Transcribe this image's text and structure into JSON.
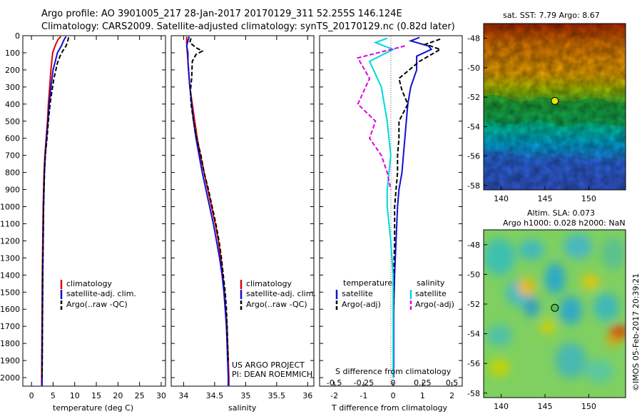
{
  "header": {
    "line1": "Argo profile: AO 3901005_217 28-Jan-2017 20170129_311 52.255S 146.124E",
    "line2": "Climatology: CARS2009. Satellite-adjusted climatology: synTS_20170129.nc (0.82d later)"
  },
  "colors": {
    "climatology": "#e00000",
    "satellite": "#1010d0",
    "argo": "#000000",
    "sat_salinity": "#00d8d8",
    "argo_salinity": "#e000e0"
  },
  "chart_data": [
    {
      "type": "line",
      "xlabel": "temperature (deg C)",
      "ylabel": "",
      "xlim": [
        -2,
        31
      ],
      "ylim": [
        2050,
        0
      ],
      "xticks": [
        "0",
        "5",
        "10",
        "15",
        "20",
        "25",
        "30"
      ],
      "yticks": [
        "0",
        "100",
        "200",
        "300",
        "400",
        "500",
        "600",
        "700",
        "800",
        "900",
        "1000",
        "1100",
        "1200",
        "1300",
        "1400",
        "1500",
        "1600",
        "1700",
        "1800",
        "1900",
        "2000"
      ],
      "legend": [
        "climatology",
        "satellite-adj. clim.",
        "Argo(..raw -QC)"
      ],
      "series": [
        {
          "name": "climatology",
          "x": [
            [
              6.8,
              5
            ],
            [
              6.2,
              20
            ],
            [
              5.6,
              50
            ],
            [
              4.9,
              100
            ],
            [
              4.5,
              200
            ],
            [
              4.2,
              300
            ],
            [
              3.9,
              400
            ],
            [
              3.7,
              500
            ],
            [
              3.4,
              600
            ],
            [
              3.1,
              700
            ],
            [
              2.9,
              800
            ],
            [
              2.8,
              900
            ],
            [
              2.7,
              1000
            ],
            [
              2.6,
              1200
            ],
            [
              2.5,
              1400
            ],
            [
              2.45,
              1600
            ],
            [
              2.4,
              1800
            ],
            [
              2.35,
              2000
            ],
            [
              2.35,
              2050
            ]
          ]
        },
        {
          "name": "satellite-adj. clim.",
          "x": [
            [
              8.0,
              5
            ],
            [
              7.6,
              20
            ],
            [
              6.9,
              60
            ],
            [
              6.0,
              100
            ],
            [
              5.0,
              200
            ],
            [
              4.5,
              300
            ],
            [
              4.1,
              400
            ],
            [
              3.8,
              500
            ],
            [
              3.5,
              600
            ],
            [
              3.2,
              700
            ],
            [
              3.0,
              800
            ],
            [
              2.9,
              900
            ],
            [
              2.8,
              1000
            ],
            [
              2.7,
              1200
            ],
            [
              2.6,
              1400
            ],
            [
              2.55,
              1600
            ],
            [
              2.5,
              1800
            ],
            [
              2.45,
              2000
            ],
            [
              2.45,
              2050
            ]
          ]
        },
        {
          "name": "Argo(..raw -QC)",
          "x": [
            [
              8.6,
              10
            ],
            [
              8.4,
              30
            ],
            [
              8.0,
              60
            ],
            [
              7.2,
              90
            ],
            [
              6.6,
              120
            ],
            [
              6.0,
              160
            ],
            [
              5.2,
              250
            ],
            [
              4.7,
              330
            ],
            [
              4.3,
              400
            ],
            [
              3.9,
              500
            ],
            [
              3.6,
              600
            ],
            [
              3.2,
              700
            ],
            [
              3.0,
              800
            ],
            [
              2.9,
              900
            ],
            [
              2.8,
              1000
            ],
            [
              2.7,
              1200
            ],
            [
              2.6,
              1400
            ],
            [
              2.55,
              1600
            ],
            [
              2.5,
              1800
            ],
            [
              2.45,
              2000
            ]
          ]
        }
      ]
    },
    {
      "type": "line",
      "xlabel": "salinity",
      "xlim": [
        33.8,
        36.1
      ],
      "ylim": [
        2050,
        0
      ],
      "xticks": [
        "34",
        "34.5",
        "35",
        "35.5",
        "36"
      ],
      "legend": [
        "climatology",
        "satellite-adj. clim.",
        "Argo(..raw -QC)"
      ],
      "annotations": [
        "US ARGO PROJECT",
        "PI: DEAN ROEMMICH"
      ],
      "series": [
        {
          "name": "climatology",
          "x": [
            [
              34.05,
              5
            ],
            [
              34.05,
              50
            ],
            [
              34.06,
              100
            ],
            [
              34.08,
              200
            ],
            [
              34.1,
              300
            ],
            [
              34.14,
              400
            ],
            [
              34.18,
              500
            ],
            [
              34.22,
              600
            ],
            [
              34.27,
              700
            ],
            [
              34.33,
              800
            ],
            [
              34.39,
              900
            ],
            [
              34.45,
              1000
            ],
            [
              34.51,
              1100
            ],
            [
              34.56,
              1200
            ],
            [
              34.6,
              1300
            ],
            [
              34.63,
              1400
            ],
            [
              34.66,
              1500
            ],
            [
              34.68,
              1600
            ],
            [
              34.7,
              1700
            ],
            [
              34.71,
              1800
            ],
            [
              34.72,
              1900
            ],
            [
              34.73,
              2000
            ],
            [
              34.73,
              2050
            ]
          ]
        },
        {
          "name": "satellite-adj. clim.",
          "x": [
            [
              34.09,
              5
            ],
            [
              34.07,
              30
            ],
            [
              34.05,
              60
            ],
            [
              34.07,
              100
            ],
            [
              34.07,
              150
            ],
            [
              34.08,
              200
            ],
            [
              34.1,
              300
            ],
            [
              34.13,
              400
            ],
            [
              34.16,
              500
            ],
            [
              34.2,
              600
            ],
            [
              34.25,
              700
            ],
            [
              34.3,
              800
            ],
            [
              34.36,
              900
            ],
            [
              34.42,
              1000
            ],
            [
              34.48,
              1100
            ],
            [
              34.53,
              1200
            ],
            [
              34.58,
              1300
            ],
            [
              34.62,
              1400
            ],
            [
              34.65,
              1500
            ],
            [
              34.67,
              1600
            ],
            [
              34.69,
              1700
            ],
            [
              34.7,
              1800
            ],
            [
              34.71,
              1900
            ],
            [
              34.72,
              2000
            ],
            [
              34.72,
              2050
            ]
          ]
        },
        {
          "name": "Argo(..raw -QC)",
          "x": [
            [
              34.12,
              15
            ],
            [
              34.1,
              40
            ],
            [
              34.2,
              70
            ],
            [
              34.3,
              90
            ],
            [
              34.2,
              110
            ],
            [
              34.14,
              150
            ],
            [
              34.13,
              250
            ],
            [
              34.11,
              320
            ],
            [
              34.12,
              400
            ],
            [
              34.16,
              500
            ],
            [
              34.21,
              600
            ],
            [
              34.28,
              700
            ],
            [
              34.33,
              800
            ],
            [
              34.4,
              900
            ],
            [
              34.46,
              1000
            ],
            [
              34.52,
              1100
            ],
            [
              34.57,
              1200
            ],
            [
              34.61,
              1300
            ],
            [
              34.64,
              1400
            ],
            [
              34.67,
              1500
            ],
            [
              34.69,
              1600
            ],
            [
              34.7,
              1700
            ],
            [
              34.71,
              1800
            ],
            [
              34.72,
              1900
            ]
          ]
        }
      ]
    },
    {
      "type": "line",
      "xlabel": "T difference from climatology",
      "xlabel_top": "S difference from climatology",
      "xlim": [
        -2.5,
        2.35
      ],
      "ylim": [
        2050,
        0
      ],
      "xticks": [
        "-2",
        "-1",
        "0",
        "1",
        "2"
      ],
      "xticks_top": [
        "-0.5",
        "-0.25",
        "0",
        "0.25",
        "0.5"
      ],
      "legend_temperature_title": "temperature",
      "legend_salinity_title": "salinity",
      "legend_temperature": [
        "satellite",
        "Argo(-adj)"
      ],
      "legend_salinity": [
        "satellite",
        "Argo(-adj)"
      ],
      "series": [
        {
          "name": "temperature satellite",
          "x": [
            [
              0.9,
              10
            ],
            [
              0.6,
              30
            ],
            [
              1.2,
              60
            ],
            [
              1.3,
              80
            ],
            [
              0.8,
              120
            ],
            [
              0.8,
              200
            ],
            [
              0.6,
              300
            ],
            [
              0.5,
              400
            ],
            [
              0.45,
              500
            ],
            [
              0.4,
              600
            ],
            [
              0.35,
              700
            ],
            [
              0.3,
              800
            ],
            [
              0.2,
              900
            ],
            [
              0.15,
              1000
            ],
            [
              0.1,
              1200
            ],
            [
              0.05,
              1400
            ],
            [
              0.02,
              1600
            ],
            [
              0.02,
              1800
            ],
            [
              0.02,
              2000
            ]
          ]
        },
        {
          "name": "temperature Argo(-adj)",
          "x": [
            [
              1.6,
              20
            ],
            [
              1.1,
              50
            ],
            [
              1.6,
              80
            ],
            [
              0.9,
              150
            ],
            [
              0.2,
              250
            ],
            [
              0.3,
              320
            ],
            [
              0.5,
              400
            ],
            [
              0.2,
              500
            ],
            [
              0.2,
              600
            ],
            [
              0.15,
              700
            ],
            [
              0.15,
              800
            ],
            [
              0.1,
              900
            ],
            [
              0.05,
              1000
            ],
            [
              0.05,
              1200
            ],
            [
              0.02,
              1400
            ],
            [
              0.02,
              1600
            ]
          ]
        },
        {
          "name": "salinity satellite",
          "x": [
            [
              -0.05,
              15
            ],
            [
              -0.15,
              40
            ],
            [
              0.0,
              80
            ],
            [
              -0.2,
              150
            ],
            [
              -0.1,
              300
            ],
            [
              -0.05,
              500
            ],
            [
              -0.02,
              700
            ],
            [
              -0.05,
              900
            ],
            [
              -0.05,
              1000
            ],
            [
              -0.02,
              1200
            ],
            [
              0.0,
              1400
            ],
            [
              0.0,
              1600
            ],
            [
              0.0,
              1800
            ],
            [
              0.0,
              2000
            ]
          ]
        },
        {
          "name": "salinity Argo(-adj)",
          "x": [
            [
              0.1,
              60
            ],
            [
              -0.3,
              130
            ],
            [
              -0.2,
              250
            ],
            [
              -0.3,
              400
            ],
            [
              -0.15,
              500
            ],
            [
              -0.2,
              600
            ],
            [
              -0.1,
              700
            ],
            [
              -0.05,
              800
            ],
            [
              -0.02,
              900
            ]
          ]
        }
      ]
    },
    {
      "type": "heatmap",
      "title": "sat. SST: 7.79 Argo: 8.67",
      "xticks": [
        "140",
        "145",
        "150"
      ],
      "yticks": [
        "-48",
        "-50",
        "-52",
        "-54",
        "-56",
        "-58"
      ],
      "marker": [
        146.124,
        -52.255
      ]
    },
    {
      "type": "heatmap",
      "title_line1": "Altim. SLA: 0.073",
      "title_line2": "Argo h1000: 0.028 h2000: NaN",
      "xticks": [
        "140",
        "145",
        "150"
      ],
      "yticks": [
        "-48",
        "-50",
        "-52",
        "-54",
        "-56",
        "-58"
      ],
      "marker": [
        146.124,
        -52.255
      ],
      "side_label": "©IMOS 05-Feb-2017 20:39:21"
    }
  ]
}
